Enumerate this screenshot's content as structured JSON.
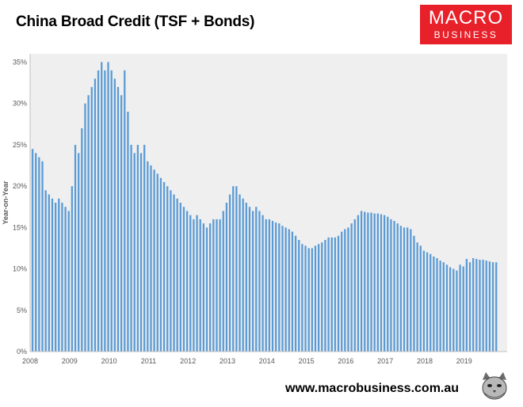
{
  "header": {
    "title": "China Broad Credit (TSF + Bonds)"
  },
  "logo": {
    "line1": "MACRO",
    "line2": "BUSINESS",
    "color": "#e8202a"
  },
  "footer": {
    "url": "www.macrobusiness.com.au"
  },
  "chart_data": {
    "type": "bar",
    "title": "China Broad Credit (TSF + Bonds)",
    "ylabel": "Year-on-Year",
    "xlabel": "",
    "ylim": [
      0,
      36
    ],
    "yticks": [
      0,
      5,
      10,
      15,
      20,
      25,
      30,
      35
    ],
    "ytick_labels": [
      "0%",
      "5%",
      "10%",
      "15%",
      "20%",
      "25%",
      "30%",
      "35%"
    ],
    "xtick_labels": [
      "2008",
      "2009",
      "2010",
      "2011",
      "2012",
      "2013",
      "2014",
      "2015",
      "2016",
      "2017",
      "2018",
      "2019"
    ],
    "start": "2008-01",
    "frequency": "monthly",
    "bar_color": "#5b9bd5",
    "grid": false,
    "values": [
      24.5,
      24.0,
      23.5,
      23.0,
      19.5,
      19.0,
      18.5,
      18.0,
      18.5,
      18.0,
      17.5,
      17.0,
      20.0,
      25.0,
      24.0,
      27.0,
      30.0,
      31.0,
      32.0,
      33.0,
      34.0,
      35.0,
      34.0,
      35.0,
      34.0,
      33.0,
      32.0,
      31.0,
      34.0,
      29.0,
      25.0,
      24.0,
      25.0,
      24.0,
      25.0,
      23.0,
      22.5,
      22.0,
      21.5,
      21.0,
      20.5,
      20.0,
      19.5,
      19.0,
      18.5,
      18.0,
      17.5,
      17.0,
      16.5,
      16.0,
      16.5,
      16.0,
      15.5,
      15.0,
      15.5,
      16.0,
      16.0,
      16.0,
      17.0,
      18.0,
      19.0,
      20.0,
      20.0,
      19.0,
      18.5,
      18.0,
      17.5,
      17.0,
      17.5,
      17.0,
      16.5,
      16.0,
      16.0,
      15.8,
      15.6,
      15.5,
      15.2,
      15.0,
      14.8,
      14.5,
      14.0,
      13.5,
      13.0,
      12.8,
      12.5,
      12.5,
      12.8,
      13.0,
      13.2,
      13.5,
      13.8,
      13.8,
      13.8,
      14.0,
      14.5,
      14.8,
      15.0,
      15.5,
      16.0,
      16.5,
      17.0,
      16.9,
      16.8,
      16.8,
      16.7,
      16.7,
      16.6,
      16.5,
      16.3,
      16.0,
      15.8,
      15.5,
      15.2,
      15.0,
      15.0,
      14.8,
      14.0,
      13.2,
      12.8,
      12.2,
      12.0,
      11.8,
      11.5,
      11.3,
      11.0,
      10.8,
      10.5,
      10.2,
      10.0,
      9.8,
      10.5,
      10.3,
      11.2,
      10.8,
      11.3,
      11.2,
      11.1,
      11.1,
      11.0,
      10.9,
      10.8,
      10.8
    ]
  }
}
